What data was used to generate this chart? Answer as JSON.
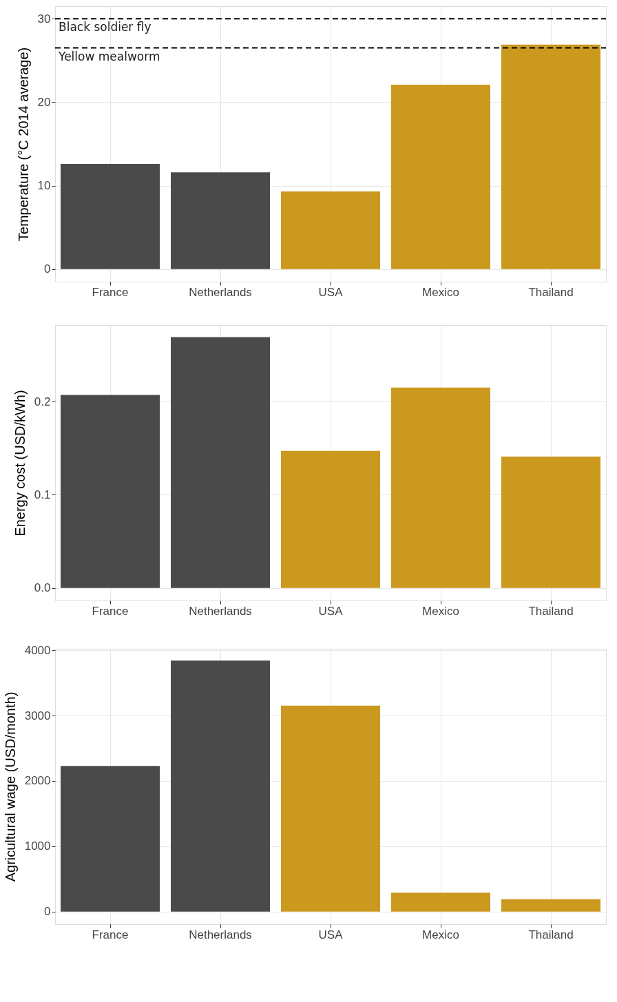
{
  "chart_data": [
    {
      "type": "bar",
      "ylabel": "Temperature (°C 2014 average)",
      "categories": [
        "France",
        "Netherlands",
        "USA",
        "Mexico",
        "Thailand"
      ],
      "values": [
        12.6,
        11.6,
        9.3,
        22.1,
        26.9
      ],
      "colors": [
        "#4a4a4a",
        "#4a4a4a",
        "#cc991f",
        "#cc991f",
        "#cc991f"
      ],
      "ylim": [
        -1.5,
        31.5
      ],
      "yticks": [
        0,
        10,
        20,
        30
      ],
      "grid": true,
      "ref_lines": [
        {
          "axis": "y",
          "value": 30,
          "label": "Black soldier fly",
          "color": "#000000",
          "line_style": "dashed"
        },
        {
          "axis": "y",
          "value": 26.5,
          "label": "Yellow mealworm",
          "color": "#000000",
          "line_style": "dashed"
        }
      ]
    },
    {
      "type": "bar",
      "ylabel": "Energy cost (USD/kWh)",
      "categories": [
        "France",
        "Netherlands",
        "USA",
        "Mexico",
        "Thailand"
      ],
      "values": [
        0.207,
        0.269,
        0.147,
        0.215,
        0.141
      ],
      "colors": [
        "#4a4a4a",
        "#4a4a4a",
        "#cc991f",
        "#cc991f",
        "#cc991f"
      ],
      "ylim": [
        -0.0134,
        0.282
      ],
      "yticks": [
        {
          "value": 0,
          "label": "0.0"
        },
        0.1,
        0.2
      ],
      "grid": true
    },
    {
      "type": "bar",
      "ylabel": "Agricultural wage (USD/month)",
      "categories": [
        "France",
        "Netherlands",
        "USA",
        "Mexico",
        "Thailand"
      ],
      "values": [
        2230,
        3840,
        3150,
        290,
        190
      ],
      "colors": [
        "#4a4a4a",
        "#4a4a4a",
        "#cc991f",
        "#cc991f",
        "#cc991f"
      ],
      "ylim": [
        -191,
        4022
      ],
      "yticks": [
        0,
        1000,
        2000,
        3000,
        4000
      ],
      "grid": true
    }
  ]
}
